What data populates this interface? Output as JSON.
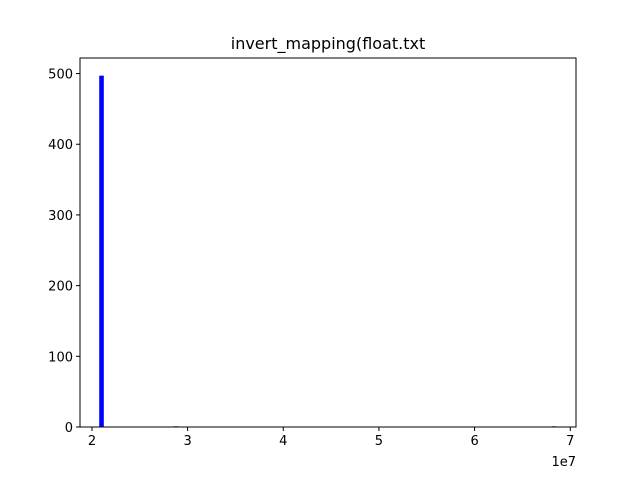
{
  "chart_data": {
    "type": "bar",
    "title": "invert_mapping(float.txt",
    "xlabel": "",
    "ylabel": "",
    "x_offset_label": "1e7",
    "xlim": [
      1.875,
      7.06
    ],
    "ylim": [
      0,
      522
    ],
    "xticks": [
      2,
      3,
      4,
      5,
      6,
      7
    ],
    "xtick_labels": [
      "2",
      "3",
      "4",
      "5",
      "6",
      "7"
    ],
    "yticks": [
      0,
      100,
      200,
      300,
      400,
      500
    ],
    "ytick_labels": [
      "0",
      "100",
      "200",
      "300",
      "400",
      "500"
    ],
    "bar_color": "#0000ff",
    "bin_width": 0.048,
    "bars": [
      {
        "x": 2.1,
        "value": 497
      },
      {
        "x": 2.88,
        "value": 1
      },
      {
        "x": 6.83,
        "value": 1
      }
    ]
  }
}
